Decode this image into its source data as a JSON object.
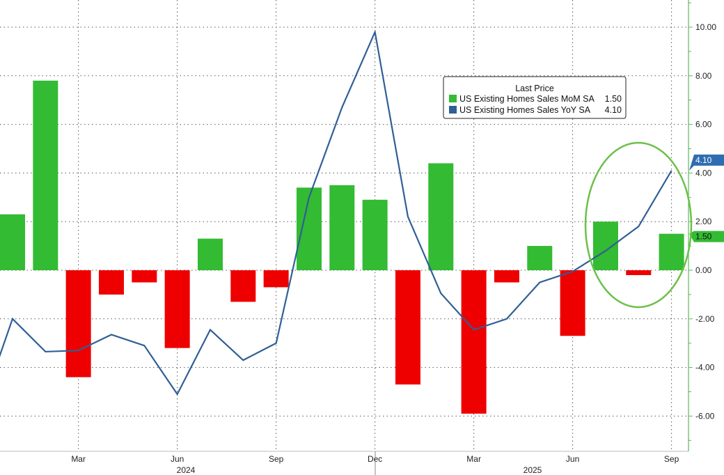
{
  "chart_data": {
    "type": "bar+line",
    "legend": {
      "title": "Last Price",
      "placement": "top-right",
      "entries": [
        {
          "label": "US Existing Homes Sales MoM SA",
          "value": "1.50",
          "color": "#33bb33"
        },
        {
          "label": "US Existing Homes Sales YoY SA",
          "value": "4.10",
          "color": "#2f5f95"
        }
      ]
    },
    "months": [
      "2024-01",
      "2024-02",
      "2024-03",
      "2024-04",
      "2024-05",
      "2024-06",
      "2024-07",
      "2024-08",
      "2024-09",
      "2024-10",
      "2024-11",
      "2024-12",
      "2025-01",
      "2025-02",
      "2025-03",
      "2025-04",
      "2025-05",
      "2025-06",
      "2025-07",
      "2025-08",
      "2025-09"
    ],
    "series": [
      {
        "name": "US Existing Homes Sales MoM SA",
        "kind": "bar",
        "values": [
          2.3,
          7.8,
          -4.4,
          -1.0,
          -0.5,
          -3.2,
          1.3,
          -1.3,
          -0.7,
          3.4,
          3.5,
          2.9,
          -4.7,
          4.4,
          -5.9,
          -0.5,
          1.0,
          -2.7,
          2.0,
          -0.2,
          1.5
        ]
      },
      {
        "name": "US Existing Homes Sales YoY SA",
        "kind": "line",
        "x_start": "2023-12",
        "values": [
          -5.9,
          -2.0,
          -3.35,
          -3.3,
          -2.65,
          -3.1,
          -5.1,
          -2.45,
          -3.7,
          -3.0,
          3.0,
          6.7,
          9.8,
          2.2,
          -0.95,
          -2.45,
          -2.0,
          -0.5,
          -0.05,
          0.8,
          1.8,
          4.1
        ]
      }
    ],
    "x_ticks": [
      "Mar",
      "Jun",
      "Sep",
      "Dec",
      "Mar",
      "Jun",
      "Sep"
    ],
    "x_tick_months": [
      "2024-03",
      "2024-06",
      "2024-09",
      "2024-12",
      "2025-03",
      "2025-06",
      "2025-09"
    ],
    "year_labels": [
      "2024",
      "2025"
    ],
    "y_ticks": [
      "10.00",
      "8.00",
      "6.00",
      "4.00",
      "2.00",
      "0.00",
      "-2.00",
      "-4.00",
      "-6.00"
    ],
    "ylim": [
      -7.3,
      11.1
    ],
    "y_axis_side": "right",
    "grid": true,
    "last_value_tags": [
      {
        "value": "4.10",
        "color": "#2f6db0"
      },
      {
        "value": "1.50",
        "color": "#33bb33"
      }
    ],
    "annotation": "green ellipse highlighting Jul-Sep 2025",
    "colors": {
      "positive_bar": "#33bb33",
      "negative_bar": "#ee0000",
      "line": "#2f5f95",
      "axis": "#5cb85c"
    }
  }
}
